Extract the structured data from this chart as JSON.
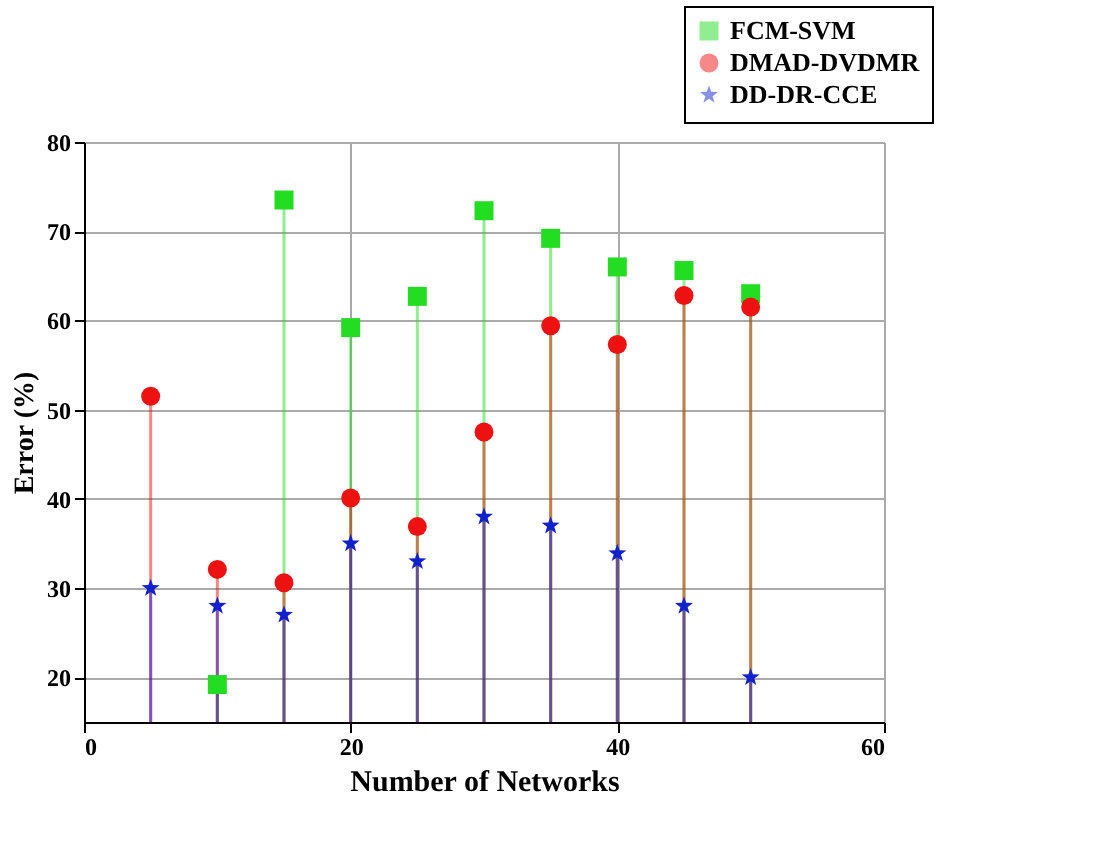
{
  "chart_data": {
    "type": "lollipop",
    "xlabel": "Number of  Networks",
    "ylabel": "Error (%)",
    "x": [
      5,
      10,
      15,
      20,
      25,
      30,
      35,
      40,
      45,
      50
    ],
    "series": [
      {
        "name": "FCM-SVM",
        "color": "#22dd22",
        "marker": "square",
        "values": [
          null,
          19.2,
          73.5,
          59.2,
          62.7,
          72.3,
          69.2,
          66.0,
          65.6,
          63.0
        ]
      },
      {
        "name": "DMAD-DVDMR",
        "color": "#ee1111",
        "marker": "circle",
        "values": [
          51.5,
          32.1,
          30.6,
          40.1,
          36.9,
          47.5,
          59.4,
          57.3,
          62.8,
          61.5
        ]
      },
      {
        "name": "DD-DR-CCE",
        "color": "#1122cc",
        "marker": "star",
        "values": [
          30.0,
          28.0,
          27.0,
          35.0,
          33.0,
          38.0,
          37.0,
          33.9,
          28.0,
          20.0
        ]
      }
    ],
    "xlim": [
      0,
      60
    ],
    "xticks": [
      0,
      20,
      40,
      60
    ],
    "ylim": [
      15,
      80
    ],
    "yticks": [
      20,
      30,
      40,
      50,
      60,
      70,
      80
    ],
    "grid": true,
    "legend": "top right"
  }
}
